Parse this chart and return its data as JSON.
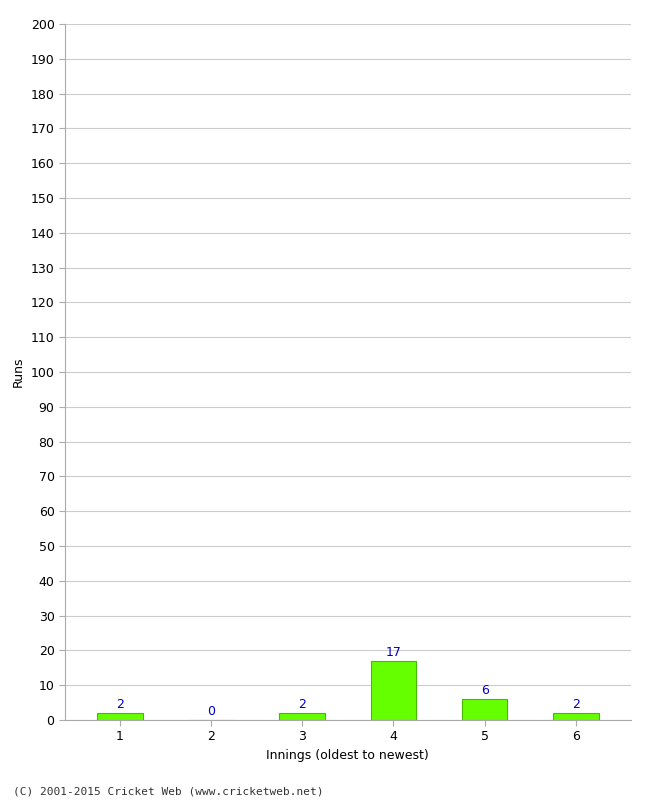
{
  "xlabel": "Innings (oldest to newest)",
  "ylabel": "Runs",
  "categories": [
    1,
    2,
    3,
    4,
    5,
    6
  ],
  "values": [
    2,
    0,
    2,
    17,
    6,
    2
  ],
  "bar_color": "#66ff00",
  "bar_edge_color": "#44bb00",
  "ylim": [
    0,
    200
  ],
  "yticks": [
    0,
    10,
    20,
    30,
    40,
    50,
    60,
    70,
    80,
    90,
    100,
    110,
    120,
    130,
    140,
    150,
    160,
    170,
    180,
    190,
    200
  ],
  "label_color": "#0000cc",
  "footer": "(C) 2001-2015 Cricket Web (www.cricketweb.net)",
  "background_color": "#ffffff",
  "grid_color": "#cccccc"
}
